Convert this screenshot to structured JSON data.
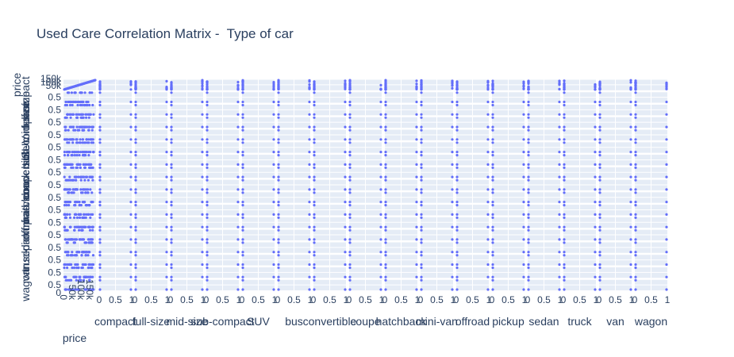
{
  "title": "Used Care Correlation Matrix -  Type of car",
  "colors": {
    "marker": "#636efa",
    "panel_bg": "#e5ecf6",
    "grid": "#ffffff",
    "text": "#2a3f5f"
  },
  "chart_data": {
    "type": "scatter",
    "subtype": "scatter-matrix",
    "title": "Used Care Correlation Matrix -  Type of car",
    "dimensions": [
      "price",
      "compact",
      "full-size",
      "mid-size",
      "sub-compact",
      "SUV",
      "bus",
      "convertible",
      "coupe",
      "hatchback",
      "mini-van",
      "offroad",
      "pickup",
      "sedan",
      "truck",
      "van",
      "wagon"
    ],
    "price_ticks": [
      "0",
      "50k",
      "100k",
      "150k"
    ],
    "binary_ticks": [
      "0",
      "0.5",
      "1"
    ],
    "price_range": [
      0,
      150000
    ],
    "binary_range": [
      0,
      1
    ],
    "grid": true,
    "legend": "none",
    "marker_color": "#636efa"
  }
}
